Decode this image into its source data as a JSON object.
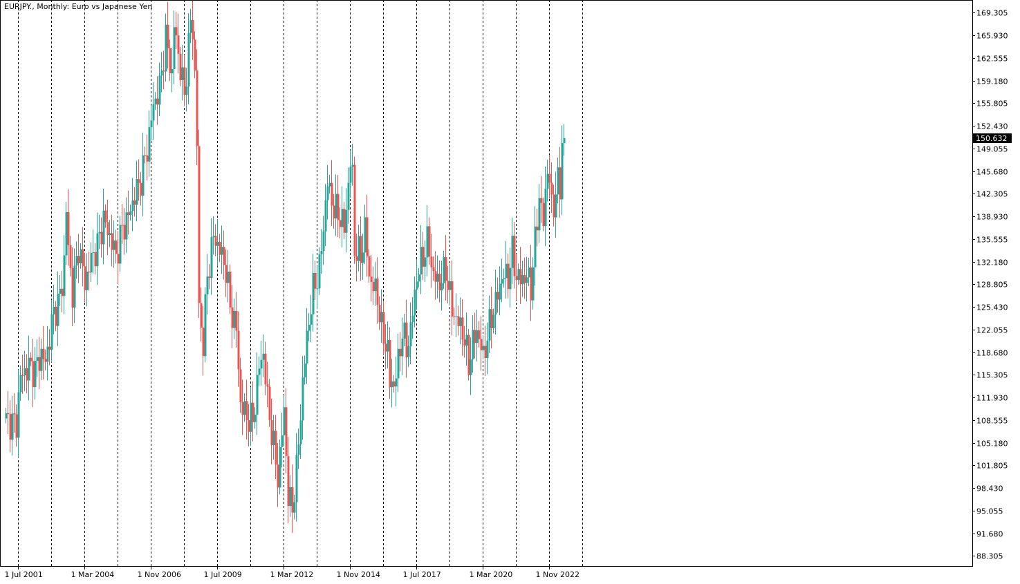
{
  "window": {
    "title": "EURJPY., Monthly:  Euro vs Japanese Yen"
  },
  "colors": {
    "up": "#26a69a",
    "down": "#ef5350",
    "grid": "#000000",
    "background": "#ffffff",
    "price_label_bg": "#000000",
    "price_label_fg": "#ffffff"
  },
  "chart_data": {
    "type": "candlestick",
    "title": "EURJPY., Monthly:  Euro vs Japanese Yen",
    "y_range": [
      86.8,
      171.2
    ],
    "y_ticks": [
      "169.305",
      "165.930",
      "162.555",
      "159.180",
      "155.805",
      "152.430",
      "149.055",
      "145.680",
      "142.305",
      "138.930",
      "135.555",
      "132.180",
      "128.805",
      "125.430",
      "122.055",
      "118.680",
      "115.305",
      "111.930",
      "108.555",
      "105.180",
      "101.805",
      "98.430",
      "95.055",
      "91.680",
      "88.305"
    ],
    "current_price": "150.632",
    "x_labels": [
      "1 Jul 2001",
      "1 Mar 2004",
      "1 Nov 2006",
      "1 Jul 2009",
      "1 Mar 2012",
      "1 Nov 2014",
      "1 Jul 2017",
      "1 Mar 2020",
      "1 Nov 2022"
    ],
    "x_label_month_index": [
      6,
      38,
      70,
      102,
      134,
      166,
      198,
      230,
      262
    ],
    "grid_vertical_month_index": [
      6,
      22,
      38,
      54,
      70,
      86,
      102,
      118,
      134,
      150,
      166,
      182,
      198,
      214,
      230,
      246,
      262,
      278
    ],
    "start": "2001-01",
    "close_anchors": [
      [
        "2001-01",
        108.5
      ],
      [
        "2001-06",
        108
      ],
      [
        "2001-07",
        112
      ],
      [
        "2001-08",
        115
      ],
      [
        "2001-12",
        116.5
      ],
      [
        "2002-03",
        116
      ],
      [
        "2002-06",
        118.5
      ],
      [
        "2002-08",
        117
      ],
      [
        "2002-10",
        121
      ],
      [
        "2002-12",
        124.5
      ],
      [
        "2003-02",
        126
      ],
      [
        "2003-04",
        128.5
      ],
      [
        "2003-05",
        132.5
      ],
      [
        "2003-06",
        140
      ],
      [
        "2003-07",
        134
      ],
      [
        "2003-09",
        127.5
      ],
      [
        "2003-12",
        134.5
      ],
      [
        "2004-03",
        129
      ],
      [
        "2004-06",
        132.5
      ],
      [
        "2004-09",
        134.5
      ],
      [
        "2004-12",
        138.5
      ],
      [
        "2005-03",
        136
      ],
      [
        "2005-06",
        133
      ],
      [
        "2005-09",
        137
      ],
      [
        "2005-12",
        139
      ],
      [
        "2006-03",
        142
      ],
      [
        "2006-06",
        144.5
      ],
      [
        "2006-09",
        149
      ],
      [
        "2006-12",
        155.5
      ],
      [
        "2007-03",
        158
      ],
      [
        "2007-06",
        165.5
      ],
      [
        "2007-09",
        160
      ],
      [
        "2007-10",
        167.5
      ],
      [
        "2008-01",
        161
      ],
      [
        "2008-03",
        157
      ],
      [
        "2008-06",
        168
      ],
      [
        "2008-07",
        166.5
      ],
      [
        "2008-08",
        160
      ],
      [
        "2008-09",
        150
      ],
      [
        "2008-10",
        125
      ],
      [
        "2008-12",
        120
      ],
      [
        "2009-02",
        130
      ],
      [
        "2009-05",
        136
      ],
      [
        "2009-08",
        134
      ],
      [
        "2009-11",
        131
      ],
      [
        "2010-01",
        125.5
      ],
      [
        "2010-04",
        122
      ],
      [
        "2010-06",
        111
      ],
      [
        "2010-09",
        109
      ],
      [
        "2010-12",
        108.5
      ],
      [
        "2011-03",
        116.5
      ],
      [
        "2011-05",
        118.5
      ],
      [
        "2011-07",
        111.5
      ],
      [
        "2011-10",
        104.5
      ],
      [
        "2011-12",
        100
      ],
      [
        "2012-03",
        110
      ],
      [
        "2012-05",
        97
      ],
      [
        "2012-07",
        95.5
      ],
      [
        "2012-09",
        101
      ],
      [
        "2012-12",
        114
      ],
      [
        "2013-02",
        121
      ],
      [
        "2013-05",
        128
      ],
      [
        "2013-08",
        131
      ],
      [
        "2013-12",
        144
      ],
      [
        "2014-03",
        140
      ],
      [
        "2014-06",
        139
      ],
      [
        "2014-08",
        137
      ],
      [
        "2014-11",
        147
      ],
      [
        "2014-12",
        145
      ],
      [
        "2015-01",
        134
      ],
      [
        "2015-04",
        133
      ],
      [
        "2015-06",
        137
      ],
      [
        "2015-08",
        130
      ],
      [
        "2015-12",
        127
      ],
      [
        "2016-02",
        122
      ],
      [
        "2016-05",
        119
      ],
      [
        "2016-06",
        114
      ],
      [
        "2016-08",
        114
      ],
      [
        "2016-10",
        117
      ],
      [
        "2016-12",
        122
      ],
      [
        "2017-02",
        119
      ],
      [
        "2017-04",
        122
      ],
      [
        "2017-07",
        130
      ],
      [
        "2017-10",
        133
      ],
      [
        "2017-12",
        135
      ],
      [
        "2018-01",
        134
      ],
      [
        "2018-03",
        130
      ],
      [
        "2018-06",
        129
      ],
      [
        "2018-09",
        131
      ],
      [
        "2018-12",
        125
      ],
      [
        "2019-03",
        123
      ],
      [
        "2019-05",
        122
      ],
      [
        "2019-08",
        117
      ],
      [
        "2019-10",
        120
      ],
      [
        "2019-12",
        122
      ],
      [
        "2020-03",
        118
      ],
      [
        "2020-05",
        121
      ],
      [
        "2020-07",
        124
      ],
      [
        "2020-09",
        126
      ],
      [
        "2020-12",
        130
      ],
      [
        "2021-03",
        130
      ],
      [
        "2021-05",
        133.5
      ],
      [
        "2021-07",
        130
      ],
      [
        "2021-09",
        129.5
      ],
      [
        "2021-12",
        130
      ],
      [
        "2022-02",
        128.5
      ],
      [
        "2022-04",
        135
      ],
      [
        "2022-06",
        142
      ],
      [
        "2022-08",
        138
      ],
      [
        "2022-10",
        146.5
      ],
      [
        "2022-11",
        144
      ],
      [
        "2022-12",
        140
      ],
      [
        "2023-01",
        141
      ],
      [
        "2023-03",
        144
      ],
      [
        "2023-04",
        143
      ],
      [
        "2023-05",
        150
      ],
      [
        "2023-06",
        150.6
      ]
    ]
  }
}
